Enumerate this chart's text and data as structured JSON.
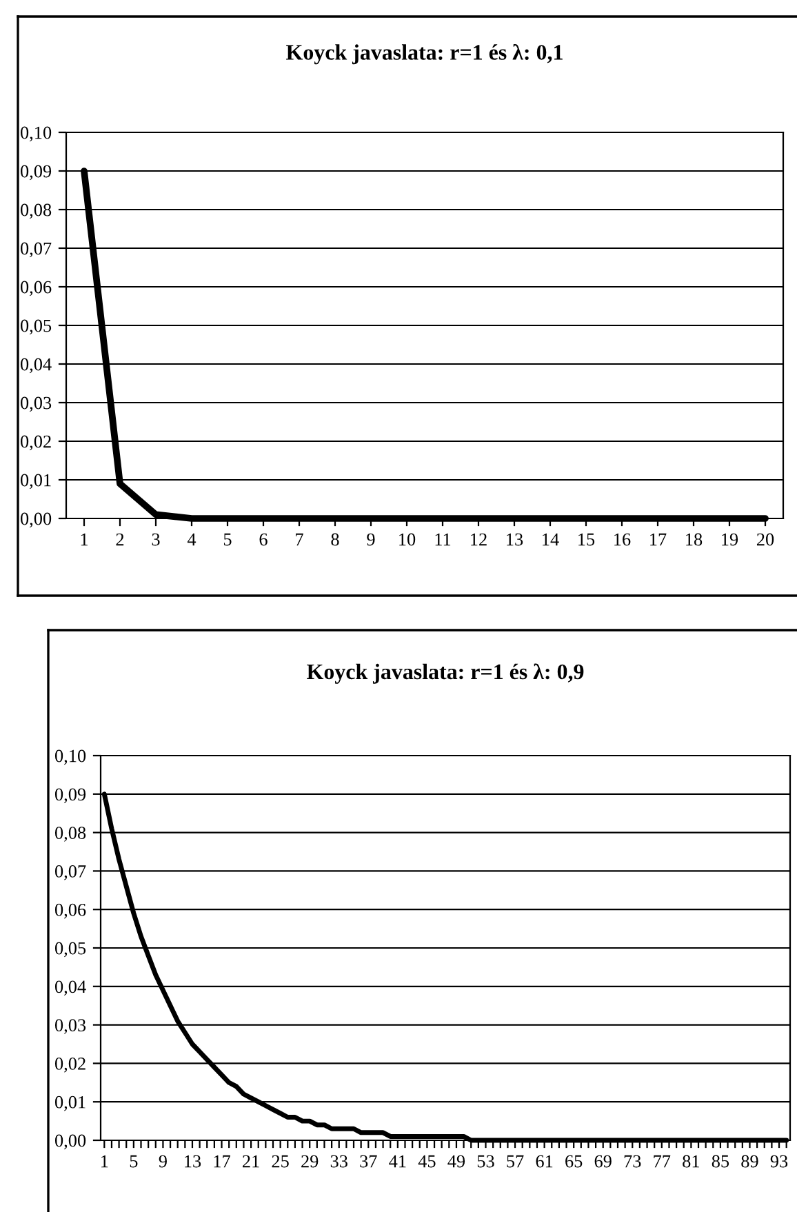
{
  "chart_data": [
    {
      "type": "line",
      "title": "Koyck javaslata: r=1 és λ: 0,1",
      "categories": [
        "1",
        "2",
        "3",
        "4",
        "5",
        "6",
        "7",
        "8",
        "9",
        "10",
        "11",
        "12",
        "13",
        "14",
        "15",
        "16",
        "17",
        "18",
        "19",
        "20"
      ],
      "series": [
        {
          "color": "#000000",
          "values": [
            0.09,
            0.009,
            0.001,
            0,
            0,
            0,
            0,
            0,
            0,
            0,
            0,
            0,
            0,
            0,
            0,
            0,
            0,
            0,
            0,
            0
          ]
        }
      ],
      "ylim": [
        0,
        0.1
      ],
      "yticks": [
        {
          "value": 0,
          "label": "0,00"
        },
        {
          "value": 0.01,
          "label": "0,01"
        },
        {
          "value": 0.02,
          "label": "0,02"
        },
        {
          "value": 0.03,
          "label": "0,03"
        },
        {
          "value": 0.04,
          "label": "0,04"
        },
        {
          "value": 0.05,
          "label": "0,05"
        },
        {
          "value": 0.06,
          "label": "0,06"
        },
        {
          "value": 0.07,
          "label": "0,07"
        },
        {
          "value": 0.08,
          "label": "0,08"
        },
        {
          "value": 0.09,
          "label": "0,09"
        },
        {
          "value": 0.1,
          "label": "0,10"
        }
      ],
      "grid": "y",
      "marker": "none",
      "line_style": "solid"
    },
    {
      "type": "line",
      "title": "Koyck javaslata: r=1 és λ: 0,9",
      "categories": [
        "1",
        null,
        null,
        null,
        "5",
        null,
        null,
        null,
        "9",
        null,
        null,
        null,
        "13",
        null,
        null,
        null,
        "17",
        null,
        null,
        null,
        "21",
        null,
        null,
        null,
        "25",
        null,
        null,
        null,
        "29",
        null,
        null,
        null,
        "33",
        null,
        null,
        null,
        "37",
        null,
        null,
        null,
        "41",
        null,
        null,
        null,
        "45",
        null,
        null,
        null,
        "49",
        null,
        null,
        null,
        "53",
        null,
        null,
        null,
        "57",
        null,
        null,
        null,
        "61",
        null,
        null,
        null,
        "65",
        null,
        null,
        null,
        "69",
        null,
        null,
        null,
        "73",
        null,
        null,
        null,
        "77",
        null,
        null,
        null,
        "81",
        null,
        null,
        null,
        "85",
        null,
        null,
        null,
        "89",
        null,
        null,
        null,
        "93",
        null
      ],
      "series": [
        {
          "color": "#000000",
          "values": [
            0.09,
            0.081,
            0.073,
            0.066,
            0.059,
            0.053,
            0.048,
            0.043,
            0.039,
            0.035,
            0.031,
            0.028,
            0.025,
            0.023,
            0.021,
            0.019,
            0.017,
            0.015,
            0.014,
            0.012,
            0.011,
            0.01,
            0.009,
            0.008,
            0.007,
            0.006,
            0.006,
            0.005,
            0.005,
            0.004,
            0.004,
            0.003,
            0.003,
            0.003,
            0.003,
            0.002,
            0.002,
            0.002,
            0.002,
            0.001,
            0.001,
            0.001,
            0.001,
            0.001,
            0.001,
            0.001,
            0.001,
            0.001,
            0.001,
            0.001,
            0,
            0,
            0,
            0,
            0,
            0,
            0,
            0,
            0,
            0,
            0,
            0,
            0,
            0,
            0,
            0,
            0,
            0,
            0,
            0,
            0,
            0,
            0,
            0,
            0,
            0,
            0,
            0,
            0,
            0,
            0,
            0,
            0,
            0,
            0,
            0,
            0,
            0,
            0,
            0,
            0,
            0,
            0,
            0
          ]
        }
      ],
      "ylim": [
        0,
        0.1
      ],
      "yticks": [
        {
          "value": 0,
          "label": "0,00"
        },
        {
          "value": 0.01,
          "label": "0,01"
        },
        {
          "value": 0.02,
          "label": "0,02"
        },
        {
          "value": 0.03,
          "label": "0,03"
        },
        {
          "value": 0.04,
          "label": "0,04"
        },
        {
          "value": 0.05,
          "label": "0,05"
        },
        {
          "value": 0.06,
          "label": "0,06"
        },
        {
          "value": 0.07,
          "label": "0,07"
        },
        {
          "value": 0.08,
          "label": "0,08"
        },
        {
          "value": 0.09,
          "label": "0,09"
        },
        {
          "value": 0.1,
          "label": "0,10"
        }
      ],
      "grid": "y",
      "marker": "none",
      "line_style": "solid"
    }
  ]
}
